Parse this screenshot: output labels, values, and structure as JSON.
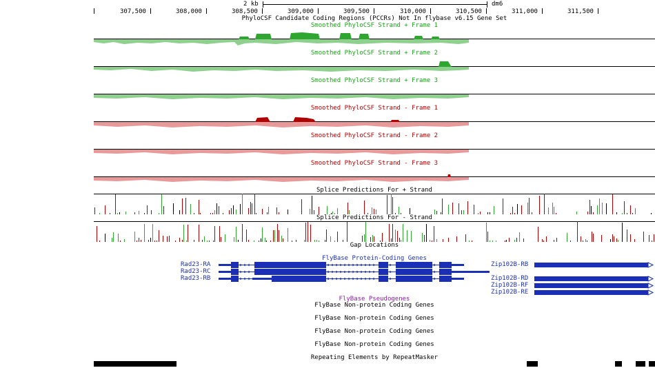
{
  "ruler": {
    "scale_label": "2 kb",
    "assembly": "dm6",
    "ticks": [
      "307,500",
      "308,000",
      "308,500",
      "309,000",
      "309,500",
      "310,000",
      "310,500",
      "311,000",
      "311,500"
    ]
  },
  "tracks": {
    "pccr_title": "PhyloCSF Candidate Coding Regions (PCCRs) Not In flybase v6.15 Gene Set",
    "phylocsf": [
      {
        "label": "Smoothed PhyloCSF  Strand +  Frame 1",
        "strand": "+",
        "color": "#2fa62f"
      },
      {
        "label": "Smoothed PhyloCSF  Strand +  Frame 2",
        "strand": "+",
        "color": "#2fa62f"
      },
      {
        "label": "Smoothed PhyloCSF  Strand +  Frame 3",
        "strand": "+",
        "color": "#2fa62f"
      },
      {
        "label": "Smoothed PhyloCSF  Strand -  Frame 1",
        "strand": "-",
        "color": "#b00000"
      },
      {
        "label": "Smoothed PhyloCSF  Strand -  Frame 2",
        "strand": "-",
        "color": "#b00000"
      },
      {
        "label": "Smoothed PhyloCSF  Strand -  Frame 3",
        "strand": "-",
        "color": "#b00000"
      }
    ],
    "splice_plus": "Splice Predictions For + Strand",
    "splice_minus": "Splice Predictions For - Strand",
    "gap": "Gap Locations",
    "protein_coding": "FlyBase Protein-Coding Genes",
    "pseudogenes": "FlyBase Pseudogenes",
    "noncoding": [
      "FlyBase Non-protein Coding Genes",
      "FlyBase Non-protein Coding Genes",
      "FlyBase Non-protein Coding Genes",
      "FlyBase Non-protein Coding Genes"
    ],
    "repeats": "Repeating Elements by RepeatMasker"
  },
  "genes": {
    "left": [
      "Rad23-RA",
      "Rad23-RC",
      "Rad23-RB"
    ],
    "right": [
      "Zip102B-RB",
      "Zip102B-RD",
      "Zip102B-RF",
      "Zip102B-RE"
    ]
  },
  "colors": {
    "green": "#2fa62f",
    "green_light": "#8fd08f",
    "red": "#b00000",
    "red_light": "#e89a9a",
    "gene_blue": "#1a2fb5"
  }
}
